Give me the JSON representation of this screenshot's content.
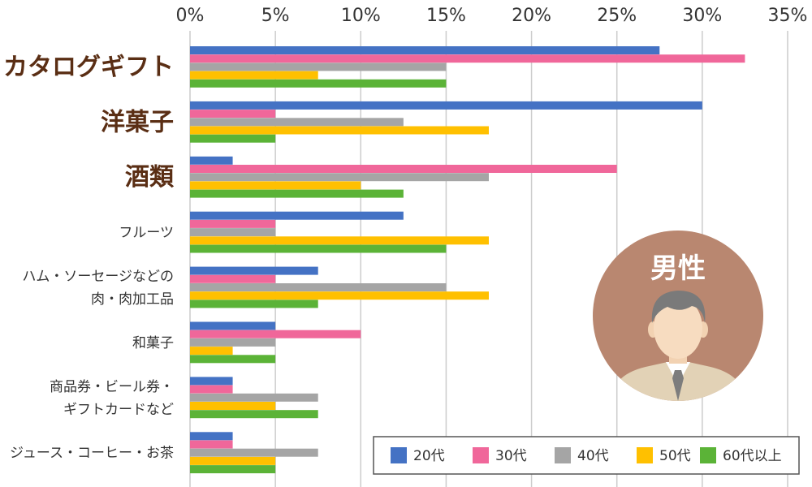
{
  "chart_data": {
    "type": "bar",
    "orientation": "horizontal",
    "categories": [
      {
        "lines": [
          "カタログギフト"
        ],
        "emphasis": true
      },
      {
        "lines": [
          "洋菓子"
        ],
        "emphasis": true
      },
      {
        "lines": [
          "酒類"
        ],
        "emphasis": true
      },
      {
        "lines": [
          "フルーツ"
        ],
        "emphasis": false
      },
      {
        "lines": [
          "ハム・ソーセージなどの",
          "肉・肉加工品"
        ],
        "emphasis": false
      },
      {
        "lines": [
          "和菓子"
        ],
        "emphasis": false
      },
      {
        "lines": [
          "商品券・ビール券・",
          "ギフトカードなど"
        ],
        "emphasis": false
      },
      {
        "lines": [
          "ジュース・コーヒー・お茶"
        ],
        "emphasis": false
      }
    ],
    "series": [
      {
        "name": "20代",
        "color": "#4472c4",
        "values": [
          27.5,
          30,
          2.5,
          12.5,
          7.5,
          5,
          2.5,
          2.5
        ]
      },
      {
        "name": "30代",
        "color": "#f0679a",
        "values": [
          32.5,
          5,
          25,
          5,
          5,
          10,
          2.5,
          2.5
        ]
      },
      {
        "name": "40代",
        "color": "#a5a5a5",
        "values": [
          15,
          12.5,
          17.5,
          5,
          15,
          5,
          7.5,
          7.5
        ]
      },
      {
        "name": "50代",
        "color": "#ffc000",
        "values": [
          7.5,
          17.5,
          10,
          17.5,
          17.5,
          2.5,
          5,
          5
        ]
      },
      {
        "name": "60代以上",
        "color": "#5bb337",
        "values": [
          15,
          5,
          12.5,
          15,
          7.5,
          5,
          7.5,
          5
        ]
      }
    ],
    "xlim": [
      0,
      35
    ],
    "xticks": [
      0,
      5,
      10,
      15,
      20,
      25,
      30,
      35
    ],
    "tick_suffix": "%",
    "grid": "vertical",
    "legend_position": "bottom-right"
  },
  "badge": {
    "label": "男性",
    "color": "#b98770",
    "icon": "businessman-icon"
  }
}
